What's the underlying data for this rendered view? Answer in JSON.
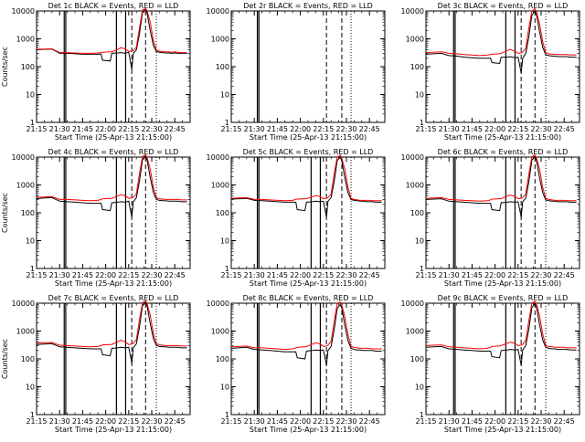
{
  "chart_data": {
    "type": "line",
    "ylabel": "Counts/sec",
    "xlabel": "Start Time (25-Apr-13 21:15:00)",
    "yscale": "log",
    "ylim": [
      1,
      10000
    ],
    "y_ticks": [
      "1",
      "10",
      "100",
      "1000",
      "10000"
    ],
    "x_ticks": [
      "21:15",
      "21:30",
      "21:45",
      "22:00",
      "22:15",
      "22:30",
      "22:45"
    ],
    "x_tick_minutes": [
      0,
      15,
      30,
      45,
      60,
      75,
      90
    ],
    "xlim_minutes": [
      0,
      100
    ],
    "colors": {
      "events": "#000000",
      "lld": "#ff0000"
    },
    "panels": [
      {
        "title": "Det 1c BLACK = Events, RED = LLD",
        "show_ylabel": true,
        "x": [
          0,
          5,
          10,
          15,
          20,
          25,
          30,
          35,
          40,
          42,
          43,
          48,
          49,
          53,
          55,
          58,
          60,
          62,
          63,
          65,
          67,
          69,
          71,
          72,
          74,
          76,
          78,
          80,
          82,
          84,
          86,
          88,
          90,
          92,
          94,
          96,
          98
        ],
        "events": [
          400,
          420,
          430,
          300,
          300,
          290,
          280,
          280,
          280,
          285,
          170,
          160,
          300,
          310,
          320,
          300,
          330,
          80,
          300,
          400,
          1500,
          9000,
          12000,
          8000,
          2000,
          600,
          350,
          330,
          320,
          310,
          310,
          300,
          310,
          300,
          300,
          300,
          300
        ],
        "lld": [
          420,
          430,
          440,
          320,
          320,
          310,
          300,
          300,
          310,
          320,
          330,
          340,
          340,
          420,
          480,
          430,
          350,
          360,
          380,
          500,
          2500,
          11000,
          12000,
          10000,
          4000,
          900,
          400,
          360,
          350,
          340,
          340,
          330,
          340,
          330,
          320,
          320,
          320
        ],
        "solid_lines": [
          18,
          19,
          52,
          58
        ],
        "dashed_lines": [
          62,
          71
        ],
        "dotted_lines": [
          78
        ]
      },
      {
        "title": "Det 2r BLACK = Events, RED = LLD",
        "show_ylabel": false,
        "x": [],
        "events": [],
        "lld": [],
        "solid_lines": [
          17,
          18
        ],
        "dashed_lines": [
          62,
          72
        ],
        "dotted_lines": [
          78
        ]
      },
      {
        "title": "Det 3c BLACK = Events, RED = LLD",
        "show_ylabel": false,
        "x": [
          0,
          5,
          10,
          15,
          20,
          25,
          30,
          35,
          40,
          42,
          43,
          48,
          49,
          53,
          55,
          58,
          60,
          62,
          63,
          65,
          67,
          69,
          71,
          72,
          74,
          76,
          78,
          80,
          82,
          84,
          86,
          88,
          90,
          92,
          94,
          96,
          98
        ],
        "events": [
          280,
          290,
          300,
          250,
          240,
          220,
          210,
          200,
          200,
          200,
          140,
          130,
          220,
          220,
          230,
          210,
          220,
          60,
          200,
          300,
          1200,
          7000,
          10000,
          7000,
          1800,
          500,
          270,
          250,
          240,
          240,
          230,
          230,
          230,
          230,
          220,
          220,
          220
        ],
        "lld": [
          320,
          330,
          340,
          300,
          290,
          270,
          260,
          250,
          260,
          270,
          280,
          290,
          300,
          380,
          420,
          350,
          300,
          310,
          330,
          450,
          2500,
          10000,
          12000,
          9000,
          3500,
          800,
          320,
          290,
          280,
          280,
          270,
          270,
          270,
          270,
          260,
          260,
          260
        ],
        "solid_lines": [
          18,
          19,
          52,
          58
        ],
        "dashed_lines": [
          62,
          71
        ],
        "dotted_lines": [
          78
        ]
      },
      {
        "title": "Det 4c BLACK = Events, RED = LLD",
        "show_ylabel": true,
        "x": [
          0,
          5,
          10,
          15,
          20,
          25,
          30,
          35,
          40,
          42,
          43,
          48,
          49,
          53,
          55,
          58,
          60,
          62,
          63,
          65,
          67,
          69,
          71,
          72,
          74,
          76,
          78,
          80,
          82,
          84,
          86,
          88,
          90,
          92,
          94,
          96,
          98
        ],
        "events": [
          320,
          340,
          350,
          260,
          250,
          240,
          230,
          220,
          220,
          220,
          130,
          120,
          230,
          240,
          250,
          240,
          260,
          70,
          250,
          350,
          1400,
          8000,
          11000,
          7500,
          1900,
          550,
          300,
          280,
          270,
          270,
          260,
          260,
          260,
          260,
          250,
          250,
          250
        ],
        "lld": [
          360,
          370,
          380,
          300,
          300,
          290,
          280,
          270,
          280,
          300,
          320,
          330,
          330,
          400,
          450,
          400,
          330,
          340,
          360,
          480,
          2600,
          10500,
          12000,
          9500,
          3800,
          850,
          350,
          320,
          310,
          300,
          300,
          300,
          300,
          300,
          290,
          290,
          290
        ],
        "solid_lines": [
          18,
          19,
          52,
          58
        ],
        "dashed_lines": [
          62,
          71
        ],
        "dotted_lines": [
          78
        ]
      },
      {
        "title": "Det 5c BLACK = Events, RED = LLD",
        "show_ylabel": false,
        "x": [
          0,
          5,
          10,
          15,
          20,
          25,
          30,
          35,
          40,
          42,
          43,
          48,
          49,
          53,
          55,
          58,
          60,
          62,
          63,
          65,
          67,
          69,
          71,
          72,
          74,
          76,
          78,
          80,
          82,
          84,
          86,
          88,
          90,
          92,
          94,
          96,
          98
        ],
        "events": [
          310,
          320,
          330,
          280,
          270,
          260,
          250,
          240,
          240,
          240,
          130,
          120,
          240,
          250,
          260,
          250,
          260,
          70,
          260,
          350,
          1300,
          7500,
          10000,
          7000,
          1800,
          520,
          300,
          280,
          270,
          260,
          260,
          250,
          250,
          250,
          240,
          240,
          240
        ],
        "lld": [
          330,
          340,
          350,
          300,
          300,
          290,
          280,
          270,
          280,
          300,
          310,
          320,
          320,
          380,
          420,
          380,
          320,
          330,
          350,
          470,
          2500,
          10000,
          11500,
          9000,
          3600,
          820,
          330,
          300,
          290,
          280,
          280,
          280,
          280,
          270,
          270,
          270,
          270
        ],
        "solid_lines": [
          17,
          18,
          52,
          58
        ],
        "dashed_lines": [
          62,
          72
        ],
        "dotted_lines": [
          78
        ]
      },
      {
        "title": "Det 6c BLACK = Events, RED = LLD",
        "show_ylabel": false,
        "x": [
          0,
          5,
          10,
          15,
          20,
          25,
          30,
          35,
          40,
          42,
          43,
          48,
          49,
          53,
          55,
          58,
          60,
          62,
          63,
          65,
          67,
          69,
          71,
          72,
          74,
          76,
          78,
          80,
          82,
          84,
          86,
          88,
          90,
          92,
          94,
          96,
          98
        ],
        "events": [
          300,
          310,
          320,
          260,
          250,
          240,
          230,
          220,
          220,
          220,
          130,
          120,
          230,
          240,
          250,
          240,
          250,
          70,
          250,
          340,
          1300,
          7800,
          10500,
          7200,
          1800,
          530,
          290,
          270,
          260,
          260,
          250,
          250,
          250,
          250,
          240,
          240,
          240
        ],
        "lld": [
          330,
          340,
          350,
          300,
          290,
          280,
          270,
          260,
          270,
          290,
          310,
          320,
          320,
          400,
          430,
          390,
          320,
          330,
          350,
          470,
          2500,
          10200,
          11800,
          9200,
          3700,
          830,
          330,
          300,
          290,
          280,
          280,
          280,
          280,
          270,
          270,
          270,
          270
        ],
        "solid_lines": [
          18,
          19,
          52,
          58
        ],
        "dashed_lines": [
          62,
          71
        ],
        "dotted_lines": [
          78
        ]
      },
      {
        "title": "Det 7c BLACK = Events, RED = LLD",
        "show_ylabel": true,
        "x": [
          0,
          5,
          10,
          15,
          20,
          25,
          30,
          35,
          40,
          42,
          43,
          48,
          49,
          53,
          55,
          58,
          60,
          62,
          63,
          65,
          67,
          69,
          71,
          72,
          74,
          76,
          78,
          80,
          82,
          84,
          86,
          88,
          90,
          92,
          94,
          96,
          98
        ],
        "events": [
          330,
          340,
          350,
          270,
          260,
          250,
          240,
          230,
          230,
          230,
          140,
          130,
          240,
          250,
          260,
          250,
          260,
          70,
          250,
          350,
          1400,
          8200,
          11000,
          7500,
          1900,
          550,
          300,
          280,
          270,
          270,
          260,
          260,
          260,
          260,
          250,
          250,
          250
        ],
        "lld": [
          370,
          380,
          390,
          310,
          300,
          290,
          280,
          270,
          280,
          300,
          320,
          330,
          330,
          420,
          470,
          400,
          330,
          340,
          360,
          490,
          2600,
          10500,
          12000,
          9500,
          3800,
          850,
          350,
          320,
          310,
          300,
          300,
          300,
          300,
          300,
          290,
          290,
          290
        ],
        "solid_lines": [
          18,
          19,
          52,
          58
        ],
        "dashed_lines": [
          62,
          71
        ],
        "dotted_lines": [
          78
        ]
      },
      {
        "title": "Det 8c BLACK = Events, RED = LLD",
        "show_ylabel": false,
        "x": [
          0,
          5,
          10,
          15,
          20,
          25,
          30,
          35,
          40,
          42,
          43,
          48,
          49,
          53,
          55,
          58,
          60,
          62,
          63,
          65,
          67,
          69,
          71,
          72,
          74,
          76,
          78,
          80,
          82,
          84,
          86,
          88,
          90,
          92,
          94,
          96,
          98
        ],
        "events": [
          240,
          250,
          260,
          220,
          210,
          200,
          190,
          180,
          180,
          180,
          110,
          100,
          190,
          200,
          210,
          200,
          210,
          60,
          200,
          280,
          1100,
          6500,
          9000,
          6500,
          1600,
          450,
          240,
          220,
          210,
          210,
          200,
          200,
          200,
          200,
          190,
          190,
          190
        ],
        "lld": [
          270,
          280,
          290,
          250,
          250,
          240,
          230,
          220,
          230,
          250,
          260,
          270,
          280,
          340,
          380,
          340,
          280,
          290,
          310,
          420,
          2200,
          9500,
          11000,
          8500,
          3200,
          750,
          280,
          260,
          250,
          240,
          240,
          240,
          240,
          230,
          230,
          230,
          230
        ],
        "solid_lines": [
          17,
          18,
          52,
          58
        ],
        "dashed_lines": [
          62,
          72
        ],
        "dotted_lines": [
          78
        ]
      },
      {
        "title": "Det 9c BLACK = Events, RED = LLD",
        "show_ylabel": false,
        "x": [
          0,
          5,
          10,
          15,
          20,
          25,
          30,
          35,
          40,
          42,
          43,
          48,
          49,
          53,
          55,
          58,
          60,
          62,
          63,
          65,
          67,
          69,
          71,
          72,
          74,
          76,
          78,
          80,
          82,
          84,
          86,
          88,
          90,
          92,
          94,
          96,
          98
        ],
        "events": [
          260,
          270,
          280,
          230,
          220,
          210,
          200,
          190,
          190,
          190,
          120,
          110,
          200,
          210,
          220,
          210,
          220,
          60,
          210,
          300,
          1200,
          7000,
          9800,
          7000,
          1700,
          480,
          260,
          240,
          230,
          230,
          220,
          220,
          220,
          220,
          210,
          210,
          210
        ],
        "lld": [
          300,
          310,
          320,
          270,
          260,
          250,
          240,
          230,
          240,
          260,
          280,
          290,
          300,
          360,
          400,
          360,
          300,
          310,
          330,
          450,
          2400,
          10000,
          11500,
          9000,
          3500,
          800,
          300,
          280,
          270,
          260,
          260,
          260,
          260,
          250,
          250,
          250,
          250
        ],
        "solid_lines": [
          18,
          19,
          52,
          58
        ],
        "dashed_lines": [
          62,
          71
        ],
        "dotted_lines": [
          78
        ]
      }
    ]
  }
}
